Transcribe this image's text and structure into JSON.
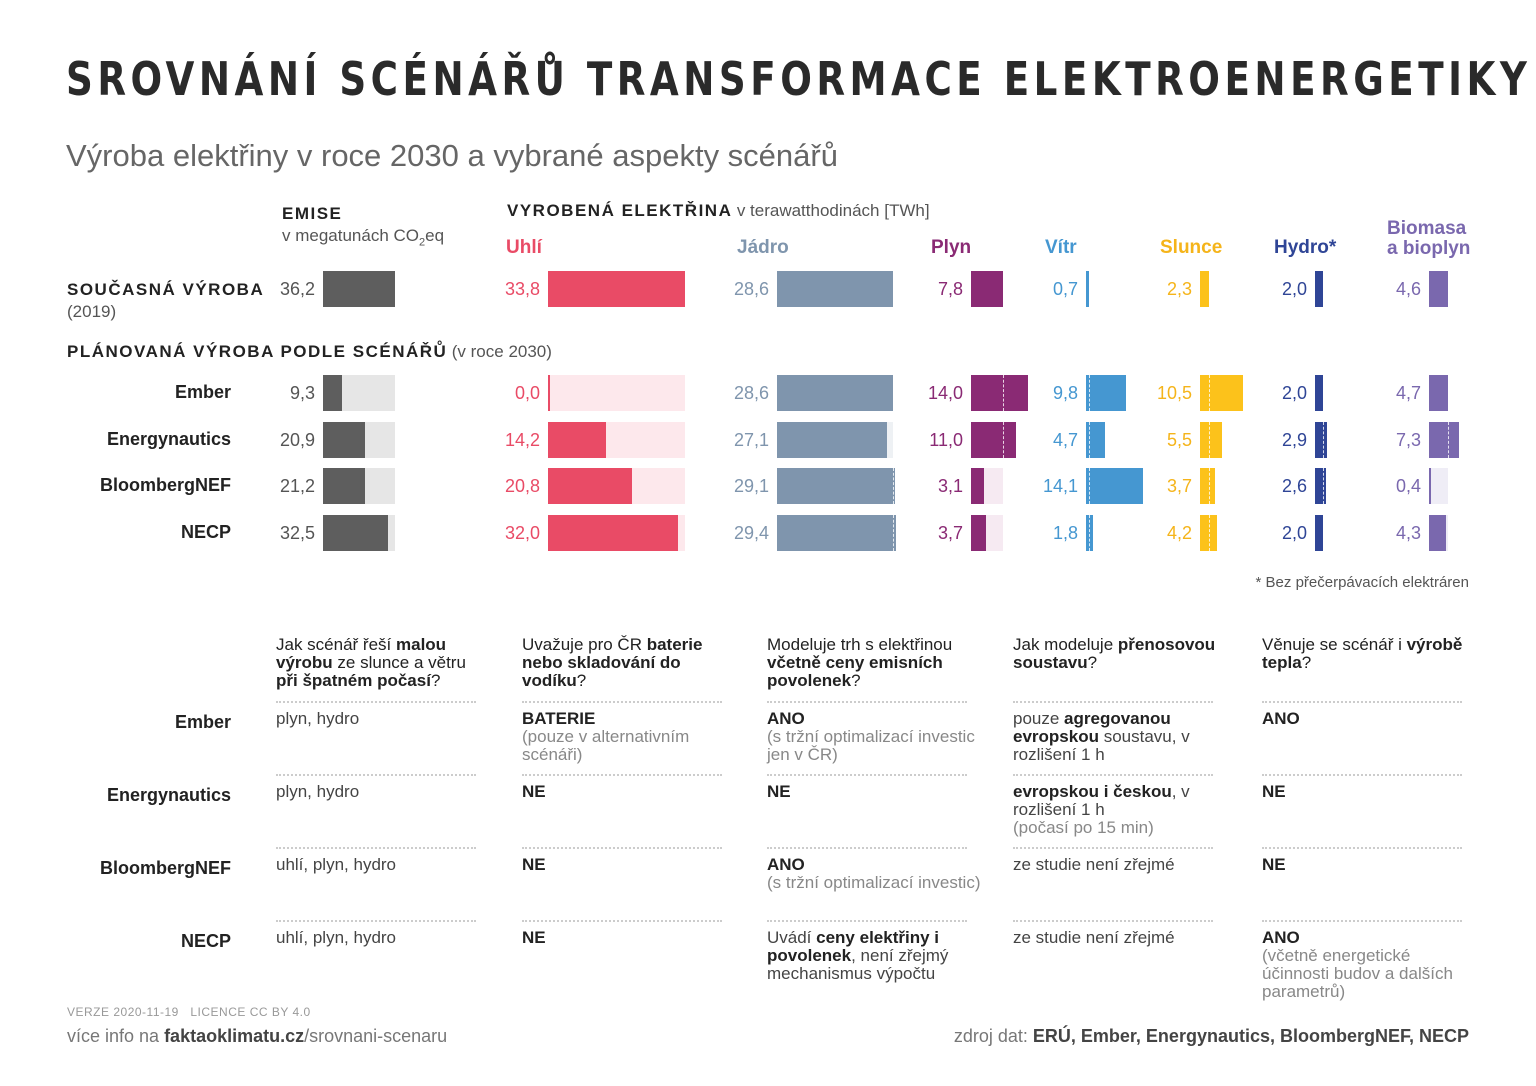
{
  "title": "SROVNÁNÍ SCÉNÁŘŮ TRANSFORMACE ELEKTROENERGETIKY ČR",
  "subtitle": "Výroba elektřiny v roce 2030 a vybrané aspekty scénářů",
  "emise_header": {
    "title": "EMISE",
    "unit_prefix": "v megatunách CO",
    "unit_sub": "2",
    "unit_suffix": "eq"
  },
  "elec_header": {
    "title": "VYROBENÁ ELEKTŘINA",
    "unit": "v terawatthodinách [TWh]"
  },
  "current_label": {
    "title": "SOUČASNÁ VÝROBA",
    "year": "(2019)"
  },
  "planned_label": {
    "title": "PLÁNOVANÁ VÝROBA PODLE SCÉNÁŘŮ",
    "year": "(v roce 2030)"
  },
  "footnote": "* Bez přečerpávacích elektráren",
  "chart_data": {
    "type": "bar",
    "rows": [
      "Současná výroba (2019)",
      "Ember",
      "Energynautics",
      "BloombergNEF",
      "NECP"
    ],
    "series": [
      {
        "key": "emise",
        "name": "",
        "values": [
          36.2,
          9.3,
          20.9,
          21.2,
          32.5
        ],
        "color": "#5e5e5e",
        "bg": "#e6e6e6",
        "text": "#555555"
      },
      {
        "key": "coal",
        "name": "Uhlí",
        "values": [
          33.8,
          0.0,
          14.2,
          20.8,
          32.0
        ],
        "color": "#e94b66",
        "bg": "#fde8ec",
        "text": "#e94b66"
      },
      {
        "key": "nuclear",
        "name": "Jádro",
        "values": [
          28.6,
          28.6,
          27.1,
          29.1,
          29.4
        ],
        "color": "#7f95ad",
        "bg": "#eef1f4",
        "text": "#7f95ad"
      },
      {
        "key": "gas",
        "name": "Plyn",
        "values": [
          7.8,
          14.0,
          11.0,
          3.1,
          3.7
        ],
        "color": "#8a2a74",
        "bg": "#f6eaf2",
        "text": "#8a2a74"
      },
      {
        "key": "wind",
        "name": "Vítr",
        "values": [
          0.7,
          9.8,
          4.7,
          14.1,
          1.8
        ],
        "color": "#4597d1",
        "bg": "#e6f1fa",
        "text": "#4597d1"
      },
      {
        "key": "solar",
        "name": "Slunce",
        "values": [
          2.3,
          10.5,
          5.5,
          3.7,
          4.2
        ],
        "color": "#fcc21b",
        "bg": "#fff6db",
        "text": "#f5b41a"
      },
      {
        "key": "hydro",
        "name": "Hydro*",
        "values": [
          2.0,
          2.0,
          2.9,
          2.6,
          2.0
        ],
        "color": "#2f4596",
        "bg": "#e7eaf4",
        "text": "#2f4596"
      },
      {
        "key": "biomass",
        "name": "Biomasa a bioplyn",
        "name_lines": [
          "Biomasa",
          "a bioplyn"
        ],
        "values": [
          4.6,
          4.7,
          7.3,
          0.4,
          4.3
        ],
        "color": "#7a68ae",
        "bg": "#efedf6",
        "text": "#7a68ae"
      }
    ],
    "value_labels": [
      [
        "36,2",
        "9,3",
        "20,9",
        "21,2",
        "32,5"
      ],
      [
        "33,8",
        "0,0",
        "14,2",
        "20,8",
        "32,0"
      ],
      [
        "28,6",
        "28,6",
        "27,1",
        "29,1",
        "29,4"
      ],
      [
        "7,8",
        "14,0",
        "11,0",
        "3,1",
        "3,7"
      ],
      [
        "0,7",
        "9,8",
        "4,7",
        "14,1",
        "1,8"
      ],
      [
        "2,3",
        "10,5",
        "5,5",
        "3,7",
        "4,2"
      ],
      [
        "2,0",
        "2,0",
        "2,9",
        "2,6",
        "2,0"
      ],
      [
        "4,6",
        "4,7",
        "7,3",
        "0,4",
        "4,3"
      ]
    ]
  },
  "scenarios": [
    "Ember",
    "Energynautics",
    "BloombergNEF",
    "NECP"
  ],
  "table": {
    "headers": [
      [
        {
          "t": "Jak scénář řeší "
        },
        {
          "t": "malou výrobu",
          "b": 1
        },
        {
          "t": " ze slunce a větru "
        },
        {
          "t": "při špatném počasí",
          "b": 1
        },
        {
          "t": "?"
        }
      ],
      [
        {
          "t": "Uvažuje pro ČR "
        },
        {
          "t": "baterie nebo skladování do vodíku",
          "b": 1
        },
        {
          "t": "?"
        }
      ],
      [
        {
          "t": "Modeluje trh s elektřinou "
        },
        {
          "t": "včetně ceny emisních povolenek",
          "b": 1
        },
        {
          "t": "?"
        }
      ],
      [
        {
          "t": "Jak modeluje "
        },
        {
          "t": "přenosovou soustavu",
          "b": 1
        },
        {
          "t": "?"
        }
      ],
      [
        {
          "t": "Věnuje se scénář i "
        },
        {
          "t": "výrobě tepla",
          "b": 1
        },
        {
          "t": "?"
        }
      ]
    ],
    "rows": [
      [
        [
          {
            "t": "plyn, hydro"
          }
        ],
        [
          {
            "t": "BATERIE",
            "b": 1
          },
          {
            "t": "(pouze v alternativním scénáři)",
            "n": 1
          }
        ],
        [
          {
            "t": "ANO",
            "b": 1
          },
          {
            "t": "(s tržní optimalizací investic jen v ČR)",
            "n": 1
          }
        ],
        [
          {
            "t": "pouze "
          },
          {
            "t": "agregovanou evropskou",
            "b": 1
          },
          {
            "t": " soustavu, v rozlišení 1 h"
          }
        ],
        [
          {
            "t": "ANO",
            "b": 1
          }
        ]
      ],
      [
        [
          {
            "t": "plyn, hydro"
          }
        ],
        [
          {
            "t": "NE",
            "b": 1
          }
        ],
        [
          {
            "t": "NE",
            "b": 1
          }
        ],
        [
          {
            "t": "evropskou i českou",
            "b": 1
          },
          {
            "t": ", v rozlišení 1 h"
          },
          {
            "t": "(počasí po 15 min)",
            "n": 1
          }
        ],
        [
          {
            "t": "NE",
            "b": 1
          }
        ]
      ],
      [
        [
          {
            "t": "uhlí, plyn, hydro"
          }
        ],
        [
          {
            "t": "NE",
            "b": 1
          }
        ],
        [
          {
            "t": "ANO",
            "b": 1
          },
          {
            "t": "(s tržní optimalizací investic)",
            "n": 1
          }
        ],
        [
          {
            "t": "ze studie není zřejmé"
          }
        ],
        [
          {
            "t": "NE",
            "b": 1
          }
        ]
      ],
      [
        [
          {
            "t": "uhlí, plyn, hydro"
          }
        ],
        [
          {
            "t": "NE",
            "b": 1
          }
        ],
        [
          {
            "t": "Uvádí "
          },
          {
            "t": "ceny elektřiny i povolenek",
            "b": 1
          },
          {
            "t": ", není zřejmý mechanismus výpočtu"
          }
        ],
        [
          {
            "t": "ze studie není zřejmé"
          }
        ],
        [
          {
            "t": "ANO",
            "b": 1
          },
          {
            "t": "(včetně energetické účinnosti budov a dalších parametrů)",
            "n": 1
          }
        ]
      ]
    ]
  },
  "footer": {
    "version": "VERZE 2020-11-19",
    "license": "LICENCE CC BY 4.0",
    "more_prefix": "více info na ",
    "more_domain": "faktaoklimatu.cz",
    "more_path": "/srovnani-scenaru",
    "source_prefix": "zdroj dat: ",
    "source_list": "ERÚ, Ember, Energynautics, BloombergNEF, NECP"
  }
}
